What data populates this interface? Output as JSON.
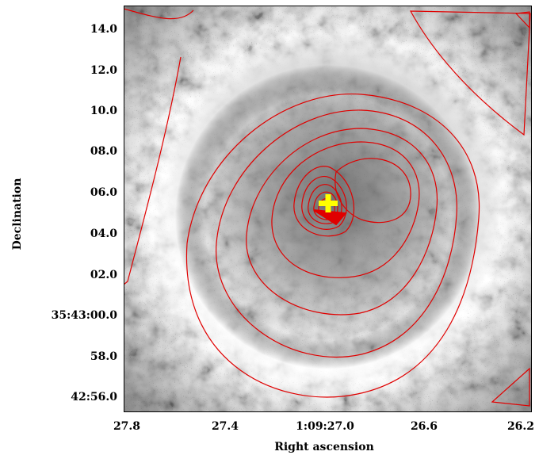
{
  "figure": {
    "xlabel": "Right ascension",
    "ylabel": "Declination",
    "x_tick_labels": [
      "27.8",
      "27.4",
      "1:09:27.0",
      "26.6",
      "26.2"
    ],
    "y_tick_labels": [
      "14.0",
      "12.0",
      "10.0",
      "08.0",
      "06.0",
      "04.0",
      "02.0",
      "35:43:00.0",
      "58.0",
      "42:56.0"
    ],
    "contour_color": "#e00000",
    "marker_color": "#ffff00",
    "marker": "yellow-plus-marker",
    "colormap": "grayscale"
  }
}
